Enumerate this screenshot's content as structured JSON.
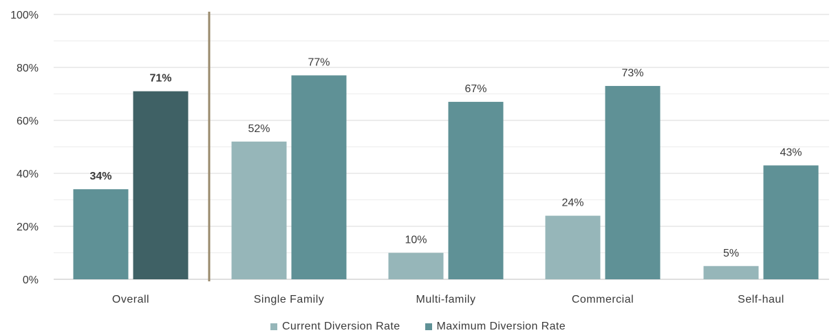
{
  "chart_data": {
    "type": "bar",
    "categories": [
      "Overall",
      "Single Family",
      "Multi-family",
      "Commercial",
      "Self-haul"
    ],
    "series": [
      {
        "name": "Current Diversion Rate",
        "values": [
          34,
          52,
          10,
          24,
          5
        ]
      },
      {
        "name": "Maximum Diversion Rate",
        "values": [
          71,
          77,
          67,
          73,
          43
        ]
      }
    ],
    "data_labels": [
      [
        "34%",
        "71%"
      ],
      [
        "52%",
        "77%"
      ],
      [
        "10%",
        "67%"
      ],
      [
        "24%",
        "73%"
      ],
      [
        "5%",
        "43%"
      ]
    ],
    "y_ticks": [
      "0%",
      "20%",
      "40%",
      "60%",
      "80%",
      "100%"
    ],
    "ylim": [
      0,
      100
    ],
    "grid": true,
    "legend_position": "bottom",
    "separator_after_category": "Overall",
    "title": "",
    "xlabel": "",
    "ylabel": "",
    "colors": {
      "overall_current": "#5f9196",
      "overall_maximum": "#3f6165",
      "current": "#96b6b9",
      "maximum": "#5f9196",
      "separator": "#9a8a6c",
      "grid": "#d9d9d9",
      "axis": "#bfbfbf"
    }
  },
  "legend": {
    "current_label": "Current Diversion Rate",
    "maximum_label": "Maximum Diversion Rate"
  }
}
